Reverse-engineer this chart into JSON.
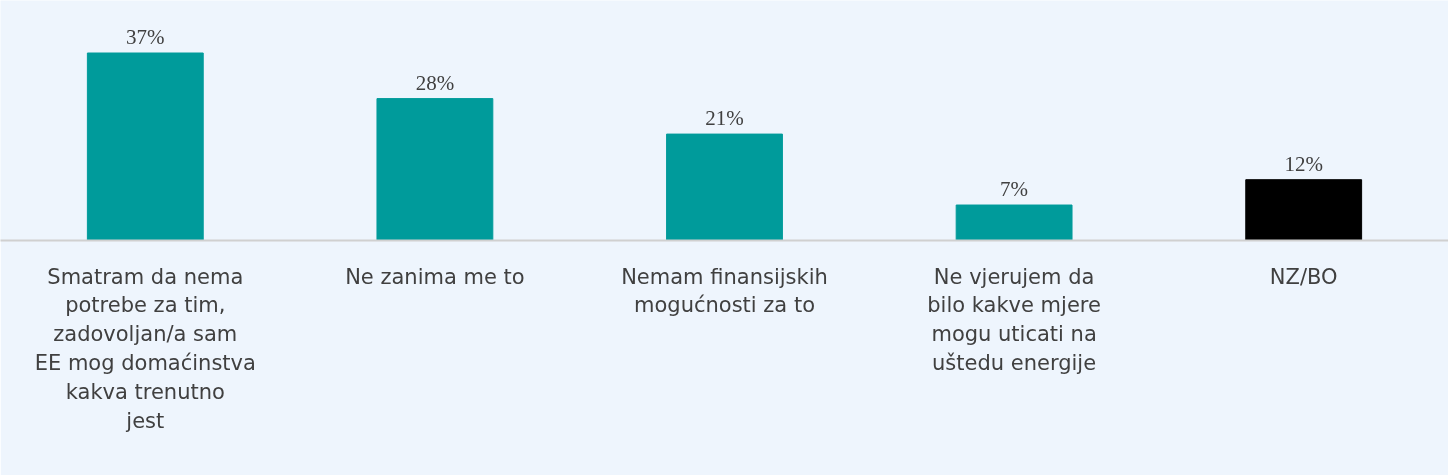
{
  "chart_data": {
    "type": "bar",
    "categories": [
      "Smatram da nema potrebe za tim, zadovoljan/a sam EE mog domaćinstva kakva trenutno jest",
      "Ne zanima me to",
      "Nemam finansijskih mogućnosti za to",
      "Ne vjerujem da bilo kakve mjere mogu uticati na uštedu energije",
      "NZ/BO"
    ],
    "values": [
      37,
      28,
      21,
      7,
      12
    ],
    "colors": [
      "#009b9b",
      "#009b9b",
      "#009b9b",
      "#009b9b",
      "#000000"
    ],
    "value_labels": [
      "37%",
      "28%",
      "21%",
      "7%",
      "12%"
    ]
  }
}
